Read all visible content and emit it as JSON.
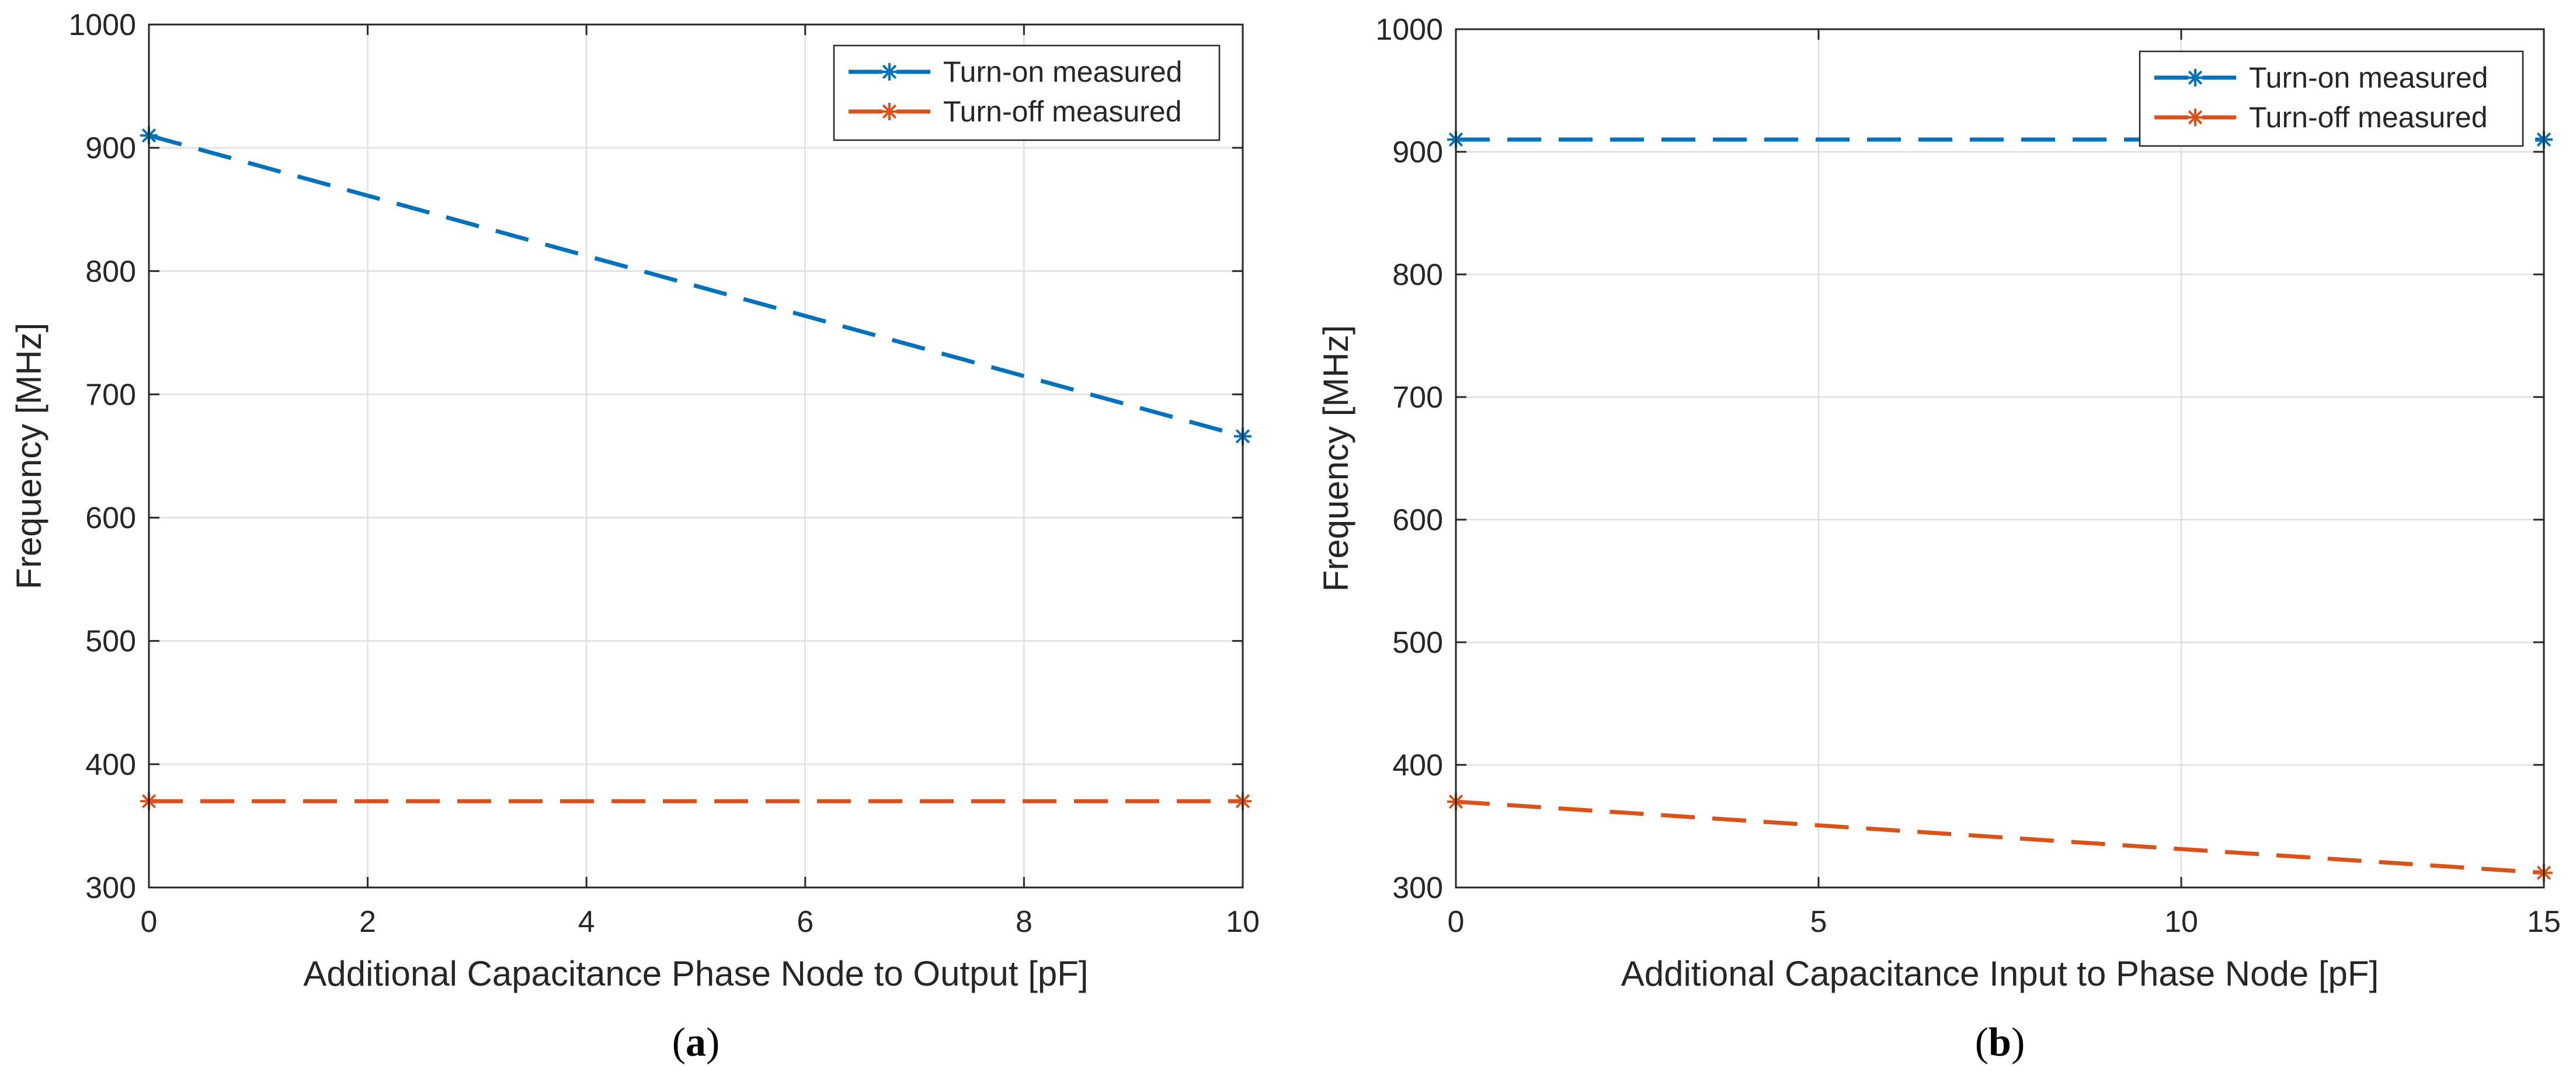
{
  "chart_data": [
    {
      "panel_label": "a",
      "type": "line",
      "xlabel": "Additional Capacitance Phase Node to Output  [pF]",
      "ylabel": "Frequency [MHz]",
      "xlim": [
        0,
        10
      ],
      "ylim": [
        300,
        1000
      ],
      "xticks": [
        0,
        2,
        4,
        6,
        8,
        10
      ],
      "yticks": [
        300,
        400,
        500,
        600,
        700,
        800,
        900,
        1000
      ],
      "grid": true,
      "legend_position": "top-right",
      "series": [
        {
          "name": "Turn-on measured",
          "color": "#0072BD",
          "x": [
            0,
            10
          ],
          "y": [
            910,
            666
          ]
        },
        {
          "name": "Turn-off measured",
          "color": "#D95319",
          "x": [
            0,
            10
          ],
          "y": [
            370,
            370
          ]
        }
      ]
    },
    {
      "panel_label": "b",
      "type": "line",
      "xlabel": "Additional Capacitance Input to Phase Node  [pF]",
      "ylabel": "Frequency [MHz]",
      "xlim": [
        0,
        15
      ],
      "ylim": [
        300,
        1000
      ],
      "xticks": [
        0,
        5,
        10,
        15
      ],
      "yticks": [
        300,
        400,
        500,
        600,
        700,
        800,
        900,
        1000
      ],
      "grid": true,
      "legend_position": "top-right",
      "series": [
        {
          "name": "Turn-on measured",
          "color": "#0072BD",
          "x": [
            0,
            15
          ],
          "y": [
            910,
            910
          ]
        },
        {
          "name": "Turn-off measured",
          "color": "#D95319",
          "x": [
            0,
            15
          ],
          "y": [
            370,
            312
          ]
        }
      ]
    }
  ]
}
